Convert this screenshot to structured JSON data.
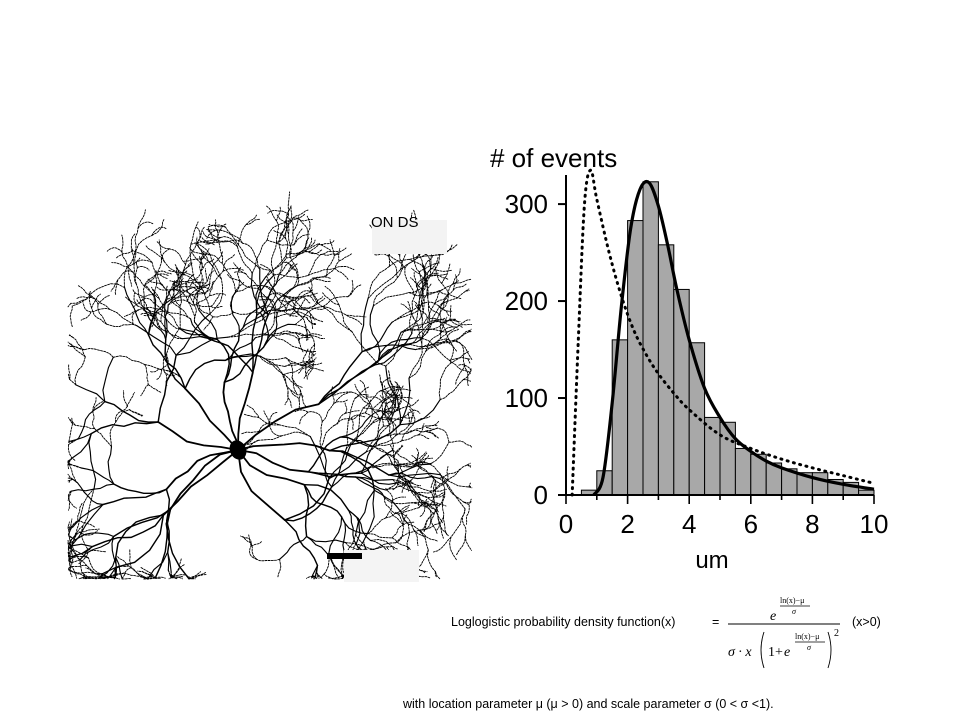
{
  "neuron_panel": {
    "cell_type_label": "ON DS"
  },
  "chart_data": {
    "type": "bar",
    "title": "# of events",
    "xlabel": "um",
    "ylabel": "# of events",
    "xlim": [
      0,
      10
    ],
    "ylim": [
      0,
      330
    ],
    "x_ticks": [
      "0",
      "2",
      "4",
      "6",
      "8",
      "10"
    ],
    "y_ticks": [
      "0",
      "100",
      "200",
      "300"
    ],
    "bin_width": 0.5,
    "bins": [
      {
        "x": 0.5,
        "value": 5
      },
      {
        "x": 1.0,
        "value": 25
      },
      {
        "x": 1.5,
        "value": 160
      },
      {
        "x": 2.0,
        "value": 283
      },
      {
        "x": 2.5,
        "value": 323
      },
      {
        "x": 3.0,
        "value": 258
      },
      {
        "x": 3.5,
        "value": 212
      },
      {
        "x": 4.0,
        "value": 157
      },
      {
        "x": 4.5,
        "value": 80
      },
      {
        "x": 5.0,
        "value": 75
      },
      {
        "x": 5.5,
        "value": 48
      },
      {
        "x": 6.0,
        "value": 42
      },
      {
        "x": 6.5,
        "value": 33
      },
      {
        "x": 7.0,
        "value": 27
      },
      {
        "x": 7.5,
        "value": 23
      },
      {
        "x": 8.0,
        "value": 23
      },
      {
        "x": 8.5,
        "value": 16
      },
      {
        "x": 9.0,
        "value": 13
      },
      {
        "x": 9.5,
        "value": 5
      }
    ],
    "series": [
      {
        "style": "solid",
        "x": [
          0.9,
          1.2,
          1.5,
          1.8,
          2.1,
          2.4,
          2.7,
          3.0,
          3.3,
          3.6,
          4.0,
          4.5,
          5.0,
          5.5,
          6.0,
          6.5,
          7.0,
          8.0,
          9.0,
          10.0
        ],
        "y": [
          0,
          18,
          95,
          195,
          275,
          315,
          322,
          298,
          258,
          212,
          160,
          110,
          80,
          58,
          45,
          35,
          28,
          18,
          11,
          6
        ]
      },
      {
        "style": "dotted",
        "x": [
          0.2,
          0.4,
          0.6,
          0.8,
          1.0,
          1.4,
          1.8,
          2.2,
          2.6,
          3.0,
          3.5,
          4.0,
          5.0,
          6.0,
          7.0,
          8.0,
          9.0,
          10.0
        ],
        "y": [
          0,
          160,
          300,
          335,
          305,
          250,
          205,
          170,
          145,
          125,
          105,
          88,
          62,
          48,
          37,
          28,
          20,
          12
        ]
      }
    ],
    "bar_color": "#a8a8a8",
    "grid": false
  },
  "formula": {
    "label": "Loglogistic probability density function(x)",
    "equals": "=",
    "exponent": "ln(x)−μ",
    "denominator_var": "σ",
    "sigma_x": "σ · x",
    "one_plus": "1+",
    "base": "e",
    "power": "2",
    "condition": "(x>0)",
    "note": "with location parameter  μ (μ > 0) and scale parameter  σ (0 < σ <1)."
  }
}
